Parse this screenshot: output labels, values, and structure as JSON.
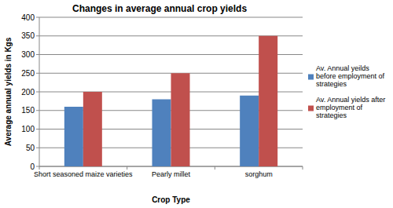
{
  "chart_data": {
    "type": "bar",
    "title": "Changes in average annual crop yields",
    "x_label": "Crop Type",
    "y_label": "Average annual yields in Kgs",
    "categories": [
      "Short seasoned maize varieties",
      "Pearly millet",
      "sorghum"
    ],
    "series": [
      {
        "name": "Av. Annual yeilds before employment of strategies",
        "color": "#4f81bd",
        "values": [
          160,
          180,
          190
        ]
      },
      {
        "name": "Av. Annual yields after employment of strategies",
        "color": "#c0504d",
        "values": [
          200,
          250,
          350
        ]
      }
    ],
    "ylim": [
      0,
      400
    ],
    "yticks": [
      0,
      50,
      100,
      150,
      200,
      250,
      300,
      350,
      400
    ],
    "grid": true,
    "legend": "right"
  }
}
